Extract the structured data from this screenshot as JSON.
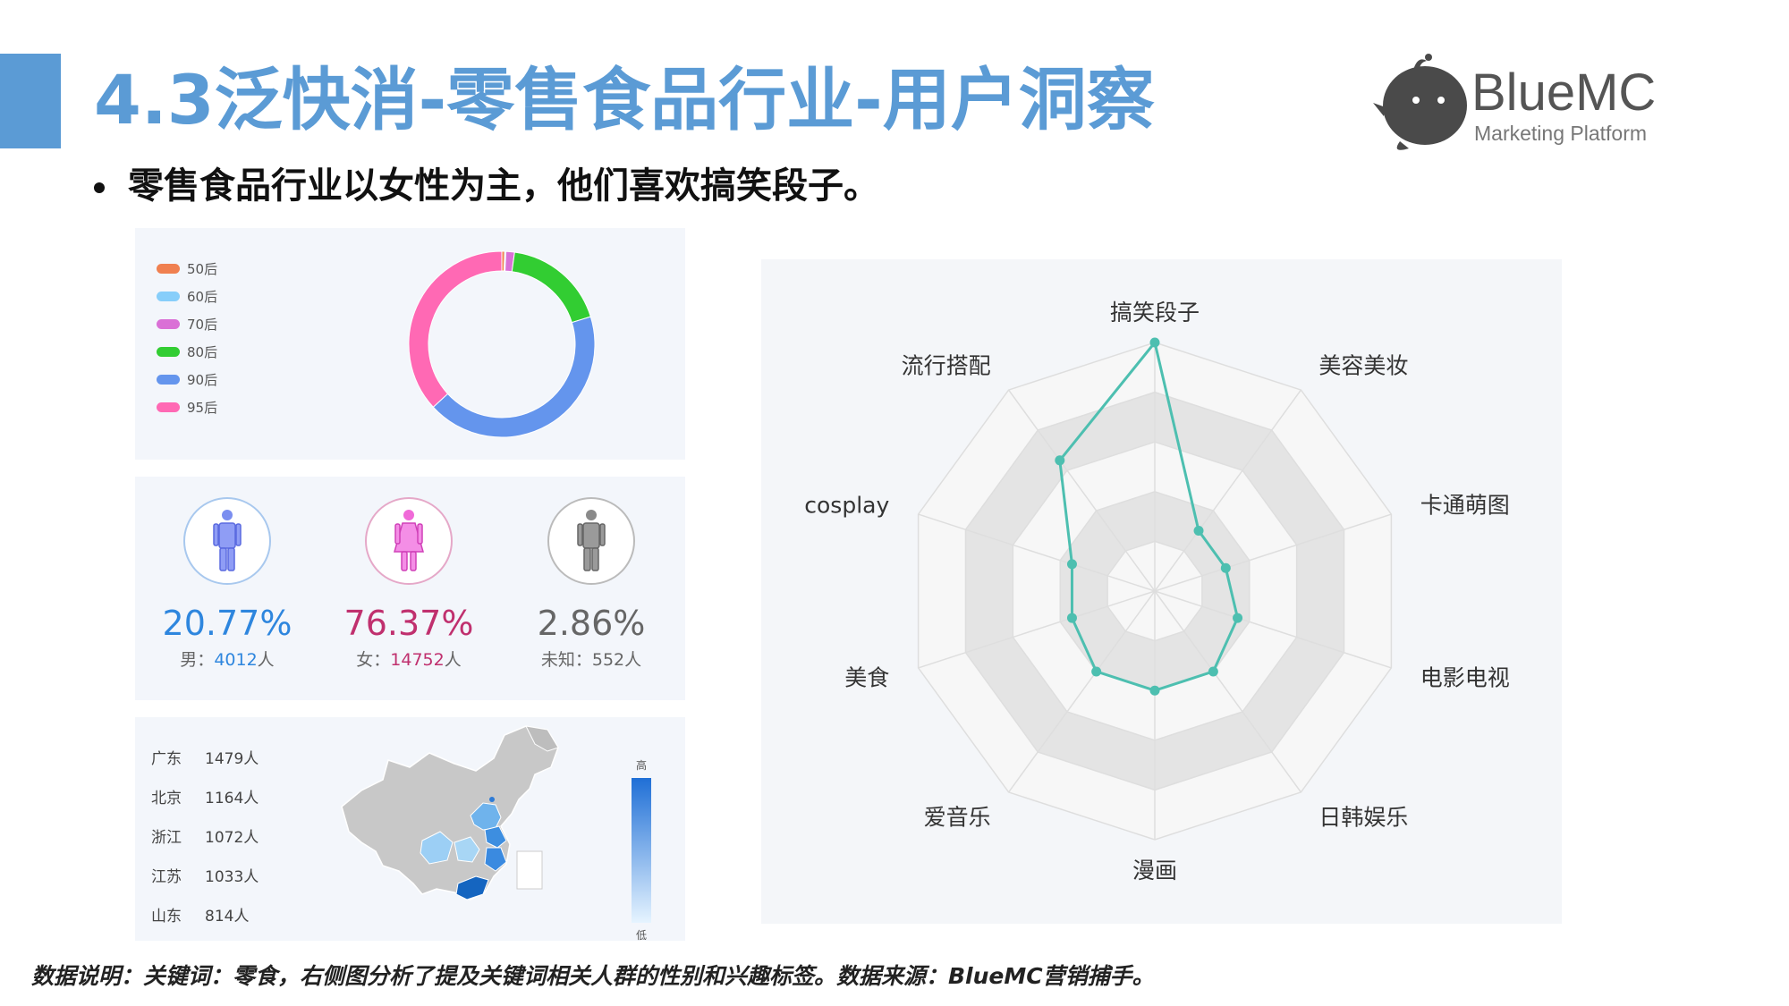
{
  "header": {
    "title": "4.3泛快消-零售食品行业-用户洞察",
    "subtitle": "零售食品行业以女性为主，他们喜欢搞笑段子。"
  },
  "logo": {
    "name": "BlueMC",
    "tagline": "Marketing Platform"
  },
  "footer": {
    "note": "数据说明：关键词：零食，右侧图分析了提及关键词相关人群的性别和兴趣标签。数据来源：BlueMC营销捕手。"
  },
  "colors": {
    "accent": "#5b9bd5",
    "male": "#2e86de",
    "female": "#c0392b",
    "unknown": "#666666",
    "radar_line": "#4dbfb0"
  },
  "chart_data": [
    {
      "type": "donut",
      "legend_position": "left",
      "categories": [
        "50后",
        "60后",
        "70后",
        "80后",
        "90后",
        "95后"
      ],
      "values": [
        0.5,
        0.2,
        1.5,
        18.0,
        43.0,
        36.8
      ],
      "colors": [
        "#f08050",
        "#87cefa",
        "#da70d6",
        "#32cd32",
        "#6495ed",
        "#ff69b4"
      ]
    },
    {
      "type": "gender",
      "items": [
        {
          "percent": "20.77%",
          "label": "男：",
          "count": "4012",
          "unit": "人",
          "color": "#2e86de",
          "ring": "#a8c8ee",
          "icon": "male-icon"
        },
        {
          "percent": "76.37%",
          "label": "女：",
          "count": "14752",
          "unit": "人",
          "color": "#c0306e",
          "ring": "#e5a8c8",
          "icon": "female-icon"
        },
        {
          "percent": "2.86%",
          "label": "未知：",
          "count": "552",
          "unit": "人",
          "color": "#666666",
          "ring": "#bbbbbb",
          "icon": "unknown-person-icon"
        }
      ]
    },
    {
      "type": "map",
      "regions": [
        {
          "name": "广东",
          "value": "1479人"
        },
        {
          "name": "北京",
          "value": "1164人"
        },
        {
          "name": "浙江",
          "value": "1072人"
        },
        {
          "name": "江苏",
          "value": "1033人"
        },
        {
          "name": "山东",
          "value": "814人"
        }
      ],
      "scale_high": "高",
      "scale_low": "低"
    },
    {
      "type": "radar",
      "axes": [
        "搞笑段子",
        "美容美妆",
        "卡通萌图",
        "电影电视",
        "日韩娱乐",
        "漫画",
        "爱音乐",
        "美食",
        "cosplay",
        "流行搭配"
      ],
      "values": [
        1.0,
        0.3,
        0.3,
        0.35,
        0.4,
        0.4,
        0.4,
        0.35,
        0.35,
        0.65
      ],
      "max": 1.0
    }
  ]
}
